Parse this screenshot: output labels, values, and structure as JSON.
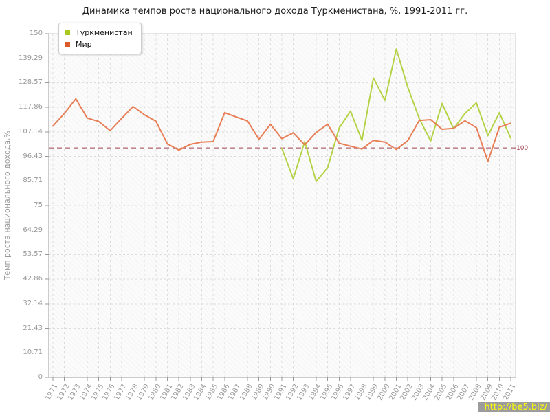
{
  "title": "Динамика темпов роста национального дохода Туркменистана, %, 1991-2011 гг.",
  "watermark": "http://be5.biz/",
  "chart_data": {
    "type": "line",
    "title": "Динамика темпов роста национального дохода Туркменистана, %, 1991-2011 гг.",
    "xlabel": "",
    "ylabel": "Темп роста национального дохода,%",
    "ylim": [
      0,
      150
    ],
    "yticks": [
      0,
      10.71,
      21.43,
      32.14,
      42.86,
      53.57,
      64.29,
      75,
      85.71,
      96.43,
      107.14,
      117.86,
      128.57,
      139.29,
      150
    ],
    "ytick_labels": [
      "0",
      "10.71",
      "21.43",
      "32.14",
      "42.86",
      "53.57",
      "64.29",
      "75",
      "85.71",
      "96.43",
      "107.14",
      "117.86",
      "128.57",
      "139.29",
      "150"
    ],
    "grid": true,
    "legend_position": "top-left",
    "reference_line": {
      "value": 100,
      "label": "100",
      "color": "#9e4050"
    },
    "x": [
      1971,
      1972,
      1973,
      1974,
      1975,
      1976,
      1977,
      1978,
      1979,
      1980,
      1981,
      1982,
      1983,
      1984,
      1985,
      1986,
      1987,
      1988,
      1989,
      1990,
      1991,
      1992,
      1993,
      1994,
      1995,
      1996,
      1997,
      1998,
      1999,
      2000,
      2001,
      2002,
      2003,
      2004,
      2005,
      2006,
      2007,
      2008,
      2009,
      2010,
      2011
    ],
    "series": [
      {
        "name": "Туркменистан",
        "color": "#a8c820",
        "line_color": "#b4d245",
        "values": [
          null,
          null,
          null,
          null,
          null,
          null,
          null,
          null,
          null,
          null,
          null,
          null,
          null,
          null,
          null,
          null,
          null,
          null,
          null,
          null,
          100,
          86.7,
          102.9,
          85.5,
          91.5,
          108.8,
          116.2,
          103.4,
          130.7,
          120.9,
          143.3,
          126.7,
          113,
          103.2,
          119.5,
          108.5,
          115.2,
          119.8,
          105.5,
          115.5,
          104.4
        ]
      },
      {
        "name": "Мир",
        "color": "#dc5b28",
        "line_color": "#e87e55",
        "values": [
          109.7,
          115.2,
          121.6,
          113.2,
          111.7,
          107.7,
          113,
          118.2,
          114.6,
          111.8,
          101.9,
          99.2,
          101.7,
          102.7,
          102.9,
          115.5,
          113.7,
          111.9,
          103.9,
          110.5,
          104.2,
          106.7,
          101.5,
          106.9,
          110.5,
          102.2,
          100.9,
          99.7,
          103.4,
          102.7,
          99.5,
          103.3,
          112.1,
          112.5,
          108.3,
          108.7,
          112,
          109,
          94.2,
          109.2,
          110.9
        ]
      }
    ],
    "axis_color": "#999999",
    "grid_color": "#dcdcdc",
    "border_color": "#cccccc"
  }
}
